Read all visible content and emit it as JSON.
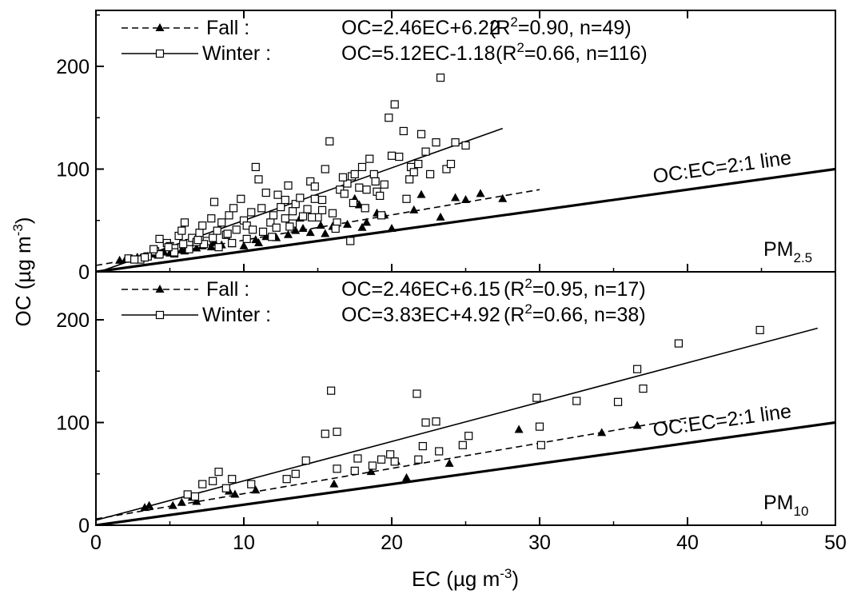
{
  "chart_data": [
    {
      "type": "scatter",
      "panel_label": "PM",
      "panel_label_sub": "2.5",
      "xlim": [
        0,
        50
      ],
      "ylim": [
        0,
        250
      ],
      "grid": false,
      "legend_position": "top-left",
      "x_ticks": [
        0,
        10,
        20,
        30,
        40,
        50
      ],
      "y_ticks": [
        "0",
        "100",
        "200"
      ],
      "y_tick_values": [
        0,
        100,
        200
      ],
      "ylabel": "OC (µg m⁻³)",
      "xlabel": "EC (µg m⁻³)",
      "legend": [
        {
          "series": "Fall",
          "name_label": "Fall :",
          "equation": "OC=2.46EC+6.22",
          "r2_open": "(R",
          "r2_sup": "2",
          "r2_close": "=0.90, n=49)"
        },
        {
          "series": "Winter",
          "name_label": "Winter :",
          "equation": "OC=5.12EC-1.18",
          "r2_open": "(R",
          "r2_sup": "2",
          "r2_close": "=0.66, n=116)"
        }
      ],
      "series": [
        {
          "name": "Fall",
          "marker": "filled-triangle",
          "line_style": "dashed",
          "fit": {
            "slope": 2.46,
            "intercept": 6.22,
            "x_range": [
              0,
              30
            ]
          },
          "points": [
            [
              1.6,
              11
            ],
            [
              2.0,
              12
            ],
            [
              2.6,
              12
            ],
            [
              3.0,
              13
            ],
            [
              3.2,
              14
            ],
            [
              3.5,
              15
            ],
            [
              3.8,
              17
            ],
            [
              4.2,
              16
            ],
            [
              4.6,
              19
            ],
            [
              5.0,
              18
            ],
            [
              5.3,
              17
            ],
            [
              5.8,
              21
            ],
            [
              6.2,
              22
            ],
            [
              6.8,
              23
            ],
            [
              7.2,
              25
            ],
            [
              7.8,
              24
            ],
            [
              8.5,
              26
            ],
            [
              9.2,
              27
            ],
            [
              10.0,
              25
            ],
            [
              10.8,
              31
            ],
            [
              11.5,
              34
            ],
            [
              12.2,
              33
            ],
            [
              13.0,
              36
            ],
            [
              13.5,
              40
            ],
            [
              14.0,
              42
            ],
            [
              14.5,
              38
            ],
            [
              15.2,
              45
            ],
            [
              16.0,
              44
            ],
            [
              17.0,
              46
            ],
            [
              17.5,
              71
            ],
            [
              17.8,
              65
            ],
            [
              18.0,
              43
            ],
            [
              18.3,
              48
            ],
            [
              19.0,
              57
            ],
            [
              19.5,
              55
            ],
            [
              20.0,
              42
            ],
            [
              21.5,
              60
            ],
            [
              22.0,
              75
            ],
            [
              23.3,
              53
            ],
            [
              24.3,
              72
            ],
            [
              25.0,
              70
            ],
            [
              26.0,
              76
            ],
            [
              27.5,
              71
            ],
            [
              13.8,
              52
            ],
            [
              11.0,
              28
            ],
            [
              8.0,
              29
            ],
            [
              6.0,
              20
            ],
            [
              2.8,
              14
            ],
            [
              15.5,
              37
            ]
          ]
        },
        {
          "name": "Winter",
          "marker": "open-square",
          "line_style": "solid",
          "fit": {
            "slope": 5.12,
            "intercept": -1.18,
            "x_range": [
              0,
              27.5
            ]
          },
          "points": [
            [
              2.2,
              13
            ],
            [
              3.0,
              12
            ],
            [
              3.5,
              15
            ],
            [
              4.0,
              20
            ],
            [
              4.3,
              32
            ],
            [
              4.8,
              28
            ],
            [
              5.0,
              25
            ],
            [
              5.3,
              23
            ],
            [
              5.6,
              35
            ],
            [
              5.8,
              40
            ],
            [
              6.0,
              48
            ],
            [
              6.3,
              28
            ],
            [
              6.5,
              33
            ],
            [
              6.8,
              29
            ],
            [
              7.0,
              38
            ],
            [
              7.2,
              45
            ],
            [
              7.5,
              30
            ],
            [
              7.8,
              52
            ],
            [
              8.0,
              68
            ],
            [
              8.2,
              40
            ],
            [
              8.5,
              48
            ],
            [
              8.8,
              36
            ],
            [
              9.0,
              55
            ],
            [
              9.3,
              62
            ],
            [
              9.5,
              41
            ],
            [
              9.8,
              71
            ],
            [
              10.0,
              50
            ],
            [
              10.2,
              45
            ],
            [
              10.5,
              58
            ],
            [
              10.8,
              102
            ],
            [
              11.0,
              90
            ],
            [
              11.2,
              62
            ],
            [
              11.5,
              77
            ],
            [
              11.8,
              48
            ],
            [
              12.0,
              55
            ],
            [
              12.3,
              75
            ],
            [
              12.5,
              63
            ],
            [
              12.8,
              70
            ],
            [
              13.0,
              84
            ],
            [
              13.3,
              59
            ],
            [
              13.5,
              66
            ],
            [
              13.8,
              72
            ],
            [
              14.0,
              54
            ],
            [
              14.3,
              61
            ],
            [
              14.5,
              88
            ],
            [
              14.8,
              83
            ],
            [
              15.0,
              53
            ],
            [
              15.3,
              70
            ],
            [
              15.5,
              100
            ],
            [
              15.8,
              127
            ],
            [
              16.0,
              57
            ],
            [
              16.3,
              48
            ],
            [
              16.5,
              80
            ],
            [
              16.8,
              76
            ],
            [
              17.0,
              86
            ],
            [
              17.3,
              93
            ],
            [
              17.5,
              95
            ],
            [
              17.8,
              82
            ],
            [
              18.0,
              102
            ],
            [
              18.3,
              80
            ],
            [
              18.5,
              110
            ],
            [
              18.8,
              95
            ],
            [
              19.0,
              78
            ],
            [
              19.3,
              55
            ],
            [
              19.5,
              85
            ],
            [
              19.8,
              150
            ],
            [
              20.0,
              113
            ],
            [
              20.2,
              163
            ],
            [
              20.5,
              112
            ],
            [
              20.8,
              137
            ],
            [
              21.0,
              71
            ],
            [
              21.3,
              102
            ],
            [
              21.5,
              97
            ],
            [
              21.8,
              105
            ],
            [
              22.0,
              134
            ],
            [
              22.3,
              117
            ],
            [
              22.6,
              95
            ],
            [
              23.0,
              126
            ],
            [
              23.3,
              189
            ],
            [
              23.7,
              100
            ],
            [
              24.0,
              105
            ],
            [
              24.3,
              126
            ],
            [
              25.0,
              123
            ],
            [
              16.2,
              42
            ],
            [
              17.2,
              30
            ],
            [
              18.2,
              62
            ],
            [
              12.2,
              43
            ],
            [
              10.2,
              32
            ],
            [
              9.2,
              28
            ],
            [
              8.3,
              24
            ],
            [
              7.3,
              27
            ],
            [
              6.3,
              22
            ],
            [
              5.3,
              19
            ],
            [
              4.3,
              17
            ],
            [
              3.3,
              14
            ],
            [
              2.6,
              12
            ],
            [
              11.3,
              39
            ],
            [
              13.3,
              47
            ],
            [
              15.3,
              60
            ],
            [
              12.8,
              52
            ],
            [
              14.8,
              71
            ],
            [
              16.7,
              92
            ],
            [
              19.2,
              74
            ],
            [
              21.2,
              90
            ],
            [
              11.9,
              34
            ],
            [
              10.6,
              41
            ],
            [
              8.9,
              37
            ],
            [
              7.9,
              33
            ],
            [
              6.9,
              31
            ],
            [
              5.9,
              27
            ],
            [
              4.9,
              24
            ],
            [
              3.9,
              22
            ],
            [
              13.1,
              44
            ],
            [
              14.6,
              53
            ],
            [
              17.4,
              67
            ],
            [
              18.9,
              88
            ]
          ]
        }
      ],
      "reference_line": {
        "label": "OC:EC=2:1 line",
        "slope": 2,
        "intercept": 0
      }
    },
    {
      "type": "scatter",
      "panel_label": "PM",
      "panel_label_sub": "10",
      "xlim": [
        0,
        50
      ],
      "ylim": [
        0,
        250
      ],
      "grid": false,
      "legend_position": "top-left",
      "x_ticks": [
        0,
        10,
        20,
        30,
        40,
        50
      ],
      "x_tick_labels": [
        "0",
        "10",
        "20",
        "30",
        "40",
        "50"
      ],
      "y_ticks": [
        "0",
        "100",
        "200"
      ],
      "y_tick_values": [
        0,
        100,
        200
      ],
      "xlabel": "EC (µg m⁻³)",
      "legend": [
        {
          "series": "Fall",
          "name_label": "Fall :",
          "equation": "OC=2.46EC+6.15",
          "r2_open": "(R",
          "r2_sup": "2",
          "r2_close": "=0.95, n=17)"
        },
        {
          "series": "Winter",
          "name_label": "Winter :",
          "equation": "OC=3.83EC+4.92",
          "r2_open": "(R",
          "r2_sup": "2",
          "r2_close": "=0.66, n=38)"
        }
      ],
      "series": [
        {
          "name": "Fall",
          "marker": "filled-triangle",
          "line_style": "dashed",
          "fit": {
            "slope": 2.46,
            "intercept": 6.15,
            "x_range": [
              0,
              40
            ]
          },
          "points": [
            [
              3.3,
              17
            ],
            [
              3.6,
              19
            ],
            [
              5.2,
              19
            ],
            [
              5.8,
              22
            ],
            [
              6.8,
              23
            ],
            [
              9.0,
              33
            ],
            [
              9.4,
              30
            ],
            [
              10.8,
              34
            ],
            [
              16.1,
              40
            ],
            [
              18.6,
              52
            ],
            [
              20.3,
              62
            ],
            [
              21.0,
              46
            ],
            [
              23.9,
              60
            ],
            [
              28.6,
              93
            ],
            [
              34.2,
              90
            ],
            [
              36.6,
              97
            ],
            [
              6.5,
              27
            ]
          ]
        },
        {
          "name": "Winter",
          "marker": "open-square",
          "line_style": "solid",
          "fit": {
            "slope": 3.83,
            "intercept": 4.92,
            "x_range": [
              0,
              48.8
            ]
          },
          "points": [
            [
              6.2,
              30
            ],
            [
              6.7,
              28
            ],
            [
              7.2,
              40
            ],
            [
              7.9,
              43
            ],
            [
              8.3,
              52
            ],
            [
              9.2,
              45
            ],
            [
              13.5,
              50
            ],
            [
              14.2,
              63
            ],
            [
              15.5,
              89
            ],
            [
              15.9,
              131
            ],
            [
              16.3,
              91
            ],
            [
              16.3,
              55
            ],
            [
              17.7,
              65
            ],
            [
              18.7,
              58
            ],
            [
              19.3,
              64
            ],
            [
              19.9,
              69
            ],
            [
              20.2,
              62
            ],
            [
              21.7,
              128
            ],
            [
              21.8,
              64
            ],
            [
              22.1,
              77
            ],
            [
              22.3,
              100
            ],
            [
              23.0,
              101
            ],
            [
              23.2,
              72
            ],
            [
              24.8,
              78
            ],
            [
              25.2,
              87
            ],
            [
              29.8,
              124
            ],
            [
              30.0,
              96
            ],
            [
              30.1,
              78
            ],
            [
              32.5,
              121
            ],
            [
              35.3,
              120
            ],
            [
              36.6,
              152
            ],
            [
              37.0,
              133
            ],
            [
              39.4,
              177
            ],
            [
              44.9,
              190
            ],
            [
              17.5,
              53
            ],
            [
              12.9,
              45
            ],
            [
              10.5,
              40
            ],
            [
              8.8,
              36
            ]
          ]
        }
      ],
      "reference_line": {
        "label": "OC:EC=2:1 line",
        "slope": 2,
        "intercept": 0
      }
    }
  ],
  "shared": {
    "ylabel": "OC (µg m⁻³)",
    "ylabel_main": "OC (µg m",
    "ylabel_sup": "-3",
    "ylabel_end": ")",
    "xlabel_main": "EC (µg m",
    "xlabel_sup": "-3",
    "xlabel_end": ")"
  }
}
